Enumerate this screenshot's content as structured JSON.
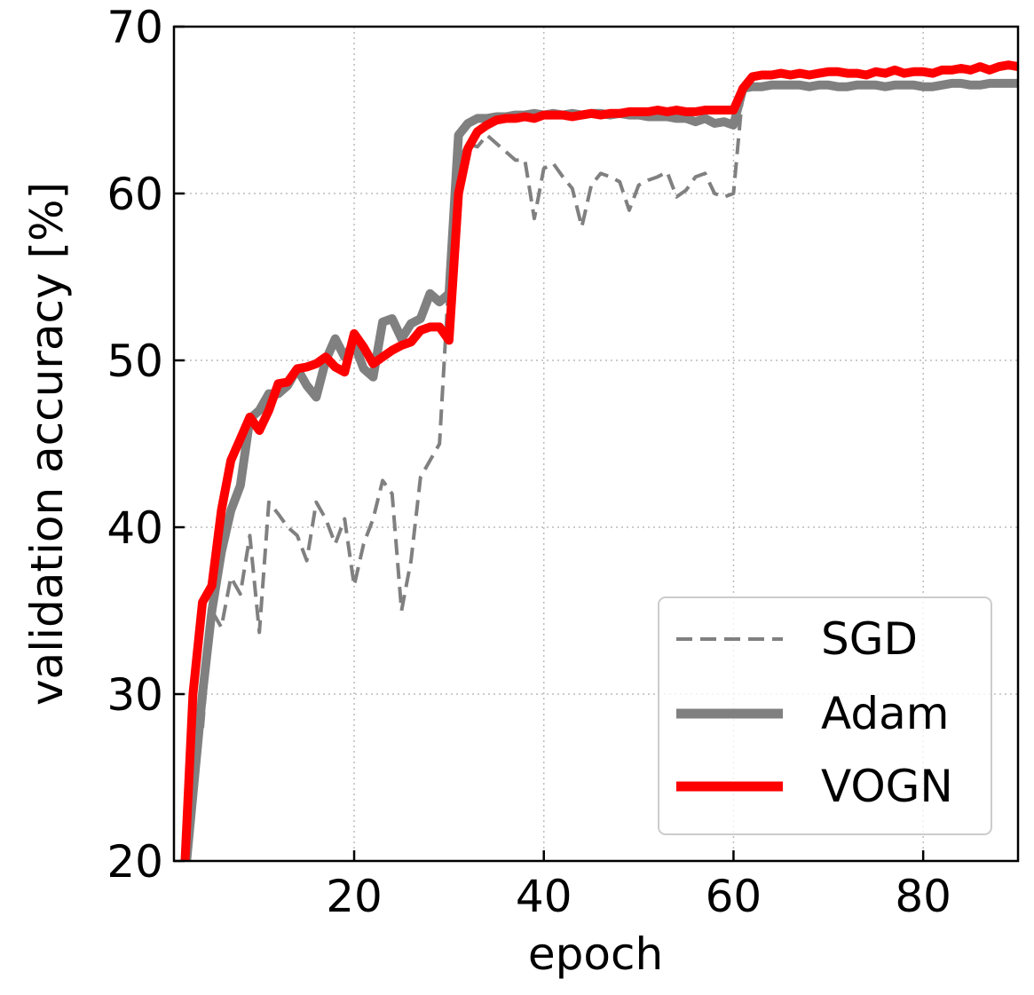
{
  "chart_data": {
    "type": "line",
    "title": "",
    "xlabel": "epoch",
    "ylabel": "validation accuracy [%]",
    "xlim": [
      1,
      90
    ],
    "ylim": [
      20,
      70
    ],
    "xticks": [
      20,
      40,
      60,
      80
    ],
    "yticks": [
      20,
      30,
      40,
      50,
      60,
      70
    ],
    "xtick_labels": [
      "20",
      "40",
      "60",
      "80"
    ],
    "ytick_labels": [
      "20",
      "30",
      "40",
      "50",
      "60",
      "70"
    ],
    "grid": true,
    "legend_position": "bottom-right",
    "series": [
      {
        "name": "SGD",
        "color": "#808080",
        "style": "dashed",
        "x_start": 2,
        "values": [
          18,
          25,
          28,
          35,
          34,
          37,
          36,
          39.5,
          33.7,
          41.5,
          40.8,
          40,
          39.5,
          38,
          41.5,
          40.5,
          39,
          40.5,
          36.5,
          39,
          40.5,
          42.8,
          42,
          35,
          38,
          43,
          44,
          45,
          55,
          62,
          63,
          62.8,
          63.5,
          63,
          62.5,
          62,
          62,
          58.5,
          61.5,
          61.8,
          61,
          60.3,
          58,
          60.5,
          61.2,
          61,
          60.7,
          59,
          60.5,
          60.8,
          61,
          61.3,
          59.8,
          60.2,
          61,
          61.2,
          60,
          59.8,
          60,
          66.2,
          66.4,
          66.4,
          66.5,
          66.5,
          66.5,
          66.5,
          66.4,
          66.5,
          66.5,
          66.4,
          66.4,
          66.5,
          66.5,
          66.5,
          66.4,
          66.5,
          66.5,
          66.5,
          66.4,
          66.4,
          66.5,
          66.6,
          66.6,
          66.5,
          66.5,
          66.6,
          66.6,
          66.6,
          66.6
        ]
      },
      {
        "name": "Adam",
        "color": "#808080",
        "style": "solid",
        "x_start": 2,
        "values": [
          18,
          24,
          30,
          35,
          38.5,
          41,
          42.5,
          46.5,
          47,
          48,
          48,
          48.5,
          49.5,
          48.5,
          47.8,
          50,
          51.3,
          50.2,
          51,
          49.5,
          49,
          52.3,
          52.5,
          51.3,
          52.2,
          52.5,
          54,
          53.5,
          54,
          63.5,
          64.2,
          64.5,
          64.5,
          64.6,
          64.6,
          64.7,
          64.7,
          64.8,
          64.7,
          64.8,
          64.7,
          64.8,
          64.7,
          64.8,
          64.8,
          64.7,
          64.8,
          64.7,
          64.7,
          64.6,
          64.6,
          64.6,
          64.5,
          64.5,
          64.3,
          64.5,
          64.2,
          64.3,
          64.1,
          66.3,
          66.4,
          66.4,
          66.5,
          66.5,
          66.5,
          66.5,
          66.4,
          66.5,
          66.5,
          66.4,
          66.4,
          66.5,
          66.5,
          66.5,
          66.4,
          66.5,
          66.5,
          66.5,
          66.4,
          66.4,
          66.5,
          66.6,
          66.6,
          66.5,
          66.5,
          66.6,
          66.6,
          66.6,
          66.6
        ]
      },
      {
        "name": "VOGN",
        "color": "#ff0000",
        "style": "solid",
        "x_start": 2,
        "values": [
          18,
          30,
          35.5,
          36.5,
          41,
          44,
          45.3,
          46.6,
          45.8,
          47,
          48.6,
          48.7,
          49.5,
          49.6,
          49.8,
          50.2,
          49.6,
          49.3,
          51.6,
          50.8,
          49.8,
          50.2,
          50.6,
          50.9,
          51.1,
          51.8,
          52,
          52,
          51.2,
          60,
          62.7,
          63.7,
          64.1,
          64.4,
          64.5,
          64.5,
          64.6,
          64.5,
          64.7,
          64.7,
          64.7,
          64.6,
          64.7,
          64.8,
          64.7,
          64.8,
          64.8,
          64.9,
          64.9,
          64.9,
          65,
          64.9,
          65,
          64.9,
          64.9,
          65,
          65,
          65,
          65,
          66.3,
          67,
          67.1,
          67.1,
          67.2,
          67.1,
          67.2,
          67.1,
          67.2,
          67.3,
          67.3,
          67.2,
          67.2,
          67.1,
          67.3,
          67.2,
          67.4,
          67.2,
          67.3,
          67.3,
          67.2,
          67.4,
          67.4,
          67.5,
          67.4,
          67.6,
          67.4,
          67.6,
          67.7,
          67.6
        ]
      }
    ]
  }
}
